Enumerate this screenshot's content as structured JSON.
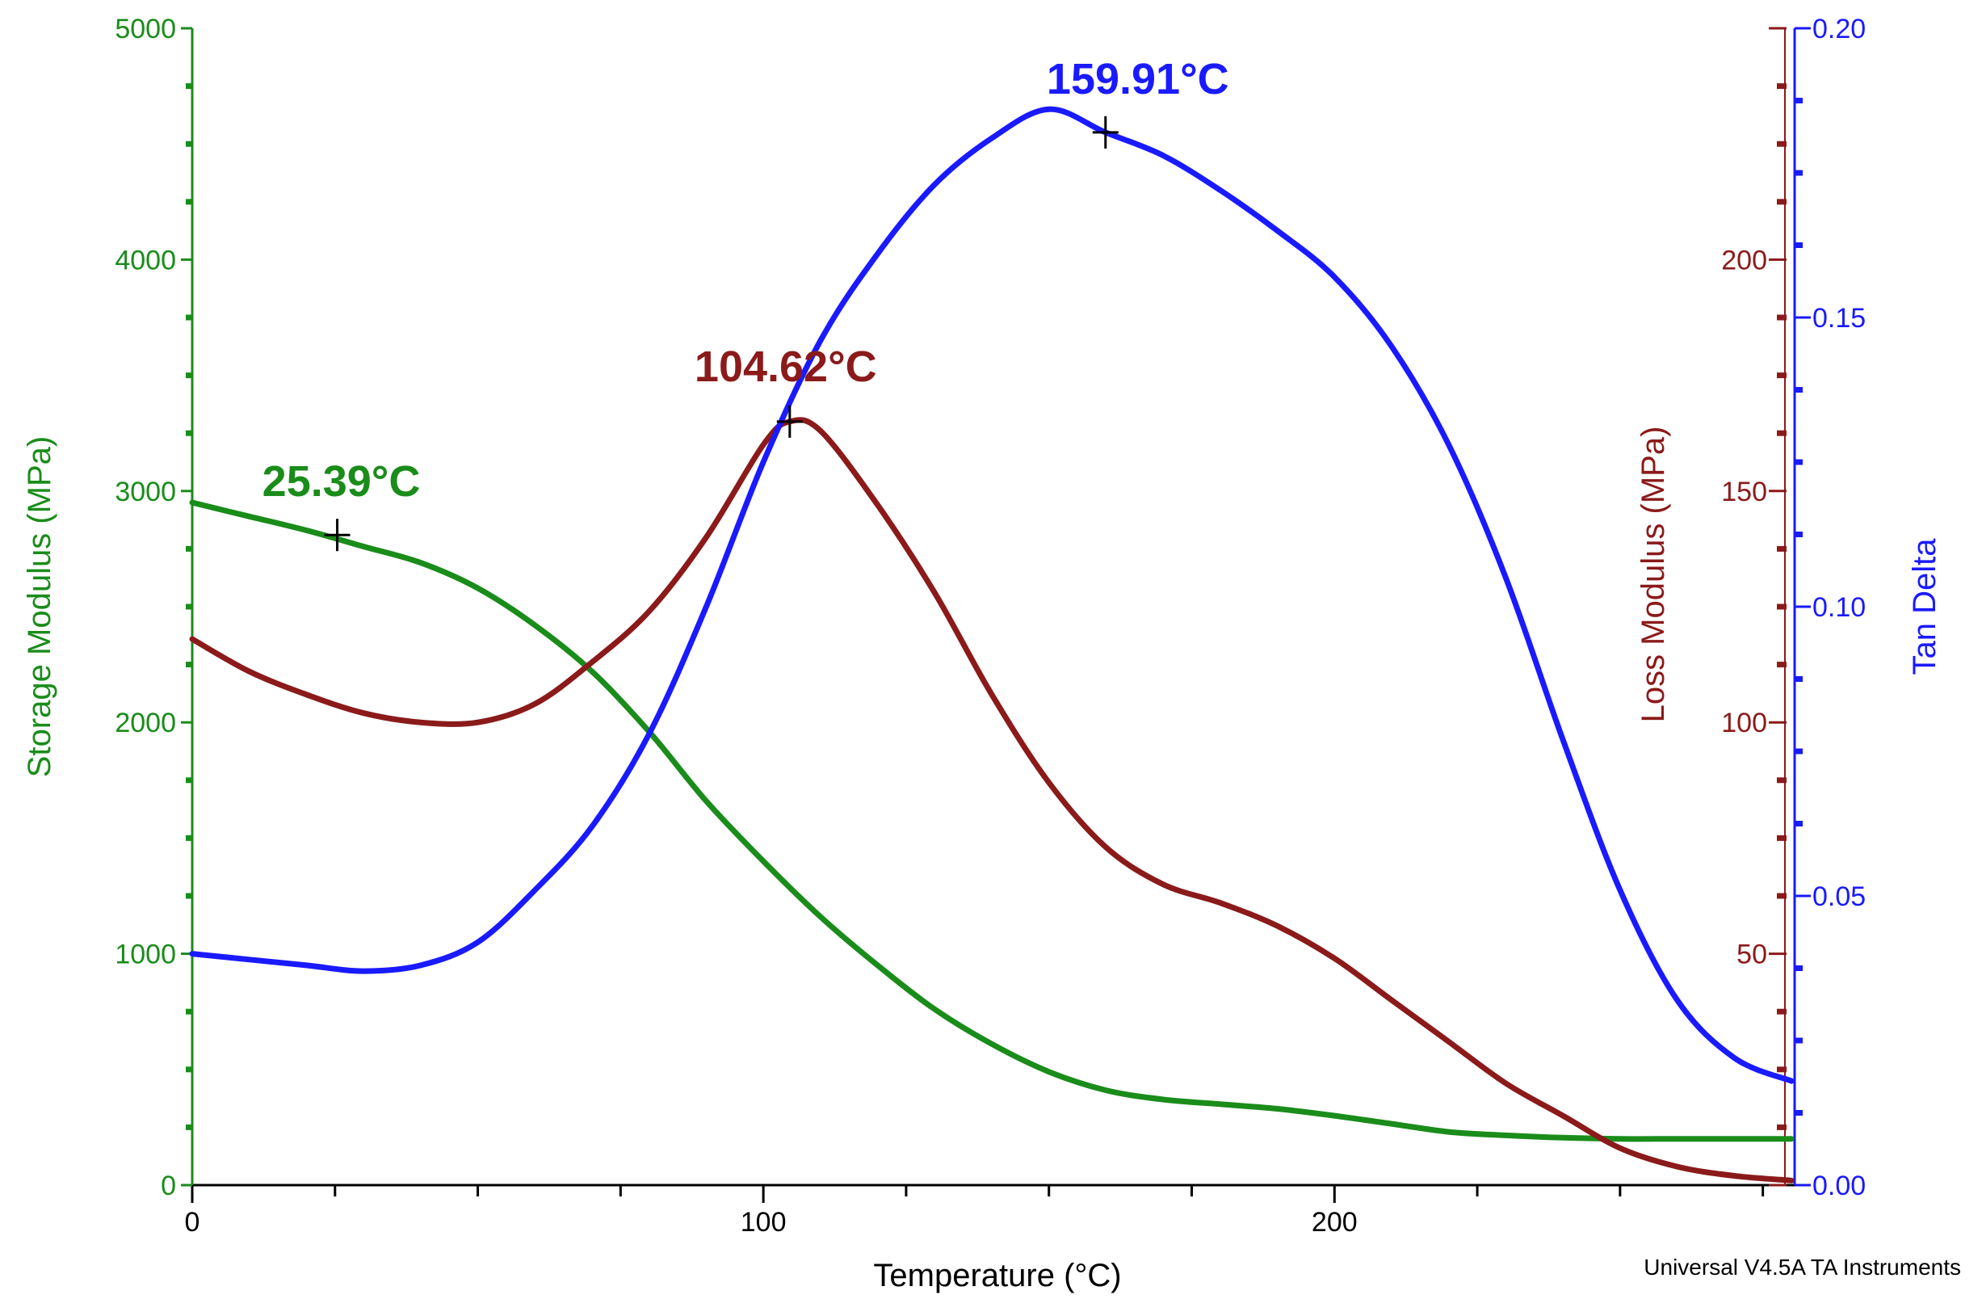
{
  "chart_data": {
    "type": "line",
    "title": "",
    "xlabel": "Temperature (°C)",
    "xlim": [
      0,
      280
    ],
    "x_ticks": [
      0,
      100,
      200
    ],
    "x_tick_labels": [
      "0",
      "100",
      "200"
    ],
    "axes": {
      "storage": {
        "label": "Storage Modulus (MPa)",
        "lim": [
          0,
          5000
        ],
        "ticks": [
          0,
          1000,
          2000,
          3000,
          4000,
          5000
        ],
        "tick_labels": [
          "0",
          "1000",
          "2000",
          "3000",
          "4000",
          "5000"
        ],
        "color": "#1a8c1a",
        "side": "left"
      },
      "loss": {
        "label": "Loss Modulus (MPa)",
        "lim": [
          0,
          250
        ],
        "ticks": [
          50,
          100,
          150,
          200
        ],
        "tick_labels": [
          "50",
          "100",
          "150",
          "200"
        ],
        "color": "#8b1a1a",
        "side": "right-inner"
      },
      "tan": {
        "label": "Tan Delta",
        "lim": [
          0,
          0.2
        ],
        "ticks": [
          0,
          0.05,
          0.1,
          0.15,
          0.2
        ],
        "tick_labels": [
          "0.00",
          "0.05",
          "0.10",
          "0.15",
          "0.20"
        ],
        "color": "#1a1aff",
        "side": "right-outer"
      }
    },
    "series": [
      {
        "name": "Storage Modulus",
        "axis": "storage",
        "color": "#1a8c1a",
        "x": [
          0,
          10,
          20,
          30,
          40,
          50,
          60,
          70,
          80,
          90,
          100,
          110,
          120,
          130,
          140,
          150,
          160,
          170,
          180,
          190,
          200,
          210,
          220,
          230,
          240,
          250,
          260,
          270,
          280
        ],
        "y": [
          2950,
          2890,
          2830,
          2760,
          2690,
          2580,
          2420,
          2220,
          1960,
          1660,
          1400,
          1160,
          950,
          760,
          610,
          490,
          410,
          370,
          350,
          330,
          300,
          265,
          230,
          215,
          205,
          200,
          200,
          200,
          200
        ]
      },
      {
        "name": "Loss Modulus",
        "axis": "loss",
        "color": "#8b1a1a",
        "x": [
          0,
          10,
          20,
          30,
          40,
          50,
          60,
          70,
          80,
          90,
          100,
          104.62,
          110,
          120,
          130,
          140,
          150,
          160,
          170,
          180,
          190,
          200,
          210,
          220,
          230,
          240,
          250,
          260,
          270,
          280
        ],
        "y": [
          118,
          111,
          106,
          102,
          100,
          100,
          104,
          113,
          124,
          140,
          160,
          165,
          163,
          147,
          128,
          106,
          87,
          73,
          65,
          61,
          56,
          49,
          40,
          31,
          22,
          15,
          8,
          4,
          2,
          1
        ]
      },
      {
        "name": "Tan Delta",
        "axis": "tan",
        "color": "#1a1aff",
        "x": [
          0,
          10,
          20,
          30,
          40,
          50,
          60,
          70,
          80,
          90,
          100,
          110,
          120,
          130,
          140,
          150,
          159.91,
          170,
          180,
          190,
          200,
          210,
          220,
          230,
          240,
          250,
          260,
          270,
          280
        ],
        "y": [
          0.04,
          0.039,
          0.038,
          0.037,
          0.038,
          0.042,
          0.051,
          0.062,
          0.078,
          0.1,
          0.125,
          0.146,
          0.161,
          0.173,
          0.181,
          0.186,
          0.182,
          0.178,
          0.172,
          0.165,
          0.157,
          0.145,
          0.128,
          0.105,
          0.077,
          0.051,
          0.032,
          0.022,
          0.018
        ]
      }
    ],
    "annotations": [
      {
        "text": "25.39°C",
        "series": "Storage Modulus",
        "x": 25.39,
        "y": 2810,
        "color": "#1a8c1a"
      },
      {
        "text": "104.62°C",
        "series": "Loss Modulus",
        "x": 104.62,
        "y": 165,
        "color": "#8b1a1a"
      },
      {
        "text": "159.91°C",
        "series": "Tan Delta",
        "x": 159.91,
        "y": 0.182,
        "color": "#1a1aff"
      }
    ],
    "footer": "Universal V4.5A TA Instruments"
  }
}
